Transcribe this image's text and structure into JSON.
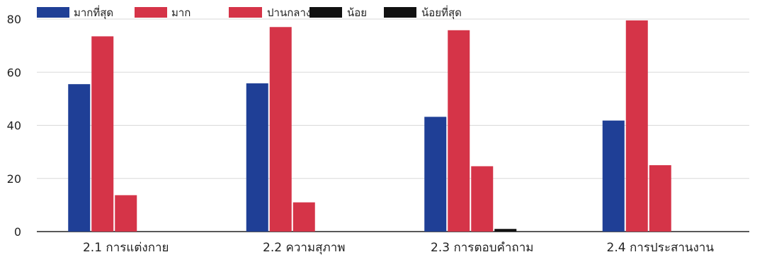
{
  "chart_data": {
    "type": "bar",
    "title": "",
    "xlabel": "",
    "ylabel": "",
    "ylim": [
      0,
      80
    ],
    "yticks": [
      0,
      20,
      40,
      60,
      80
    ],
    "grid": true,
    "legend_position": "top-left",
    "categories": [
      "2.1 การแต่งกาย",
      "2.2 ความสุภาพ",
      "2.3 การตอบคำถาม",
      "2.4 การประสานงาน"
    ],
    "series": [
      {
        "name": "มากที่สุด",
        "color": "#1f3f96",
        "values": [
          55.5,
          55.8,
          43.2,
          41.8
        ]
      },
      {
        "name": "มาก",
        "color": "#d53448",
        "values": [
          73.5,
          77.0,
          75.8,
          79.5
        ]
      },
      {
        "name": "ปานกลาง",
        "color": "#d53448",
        "values": [
          13.7,
          11.0,
          24.6,
          25.0
        ]
      },
      {
        "name": "น้อย",
        "color": "#111111",
        "values": [
          0,
          0,
          1.0,
          0
        ]
      },
      {
        "name": "น้อยที่สุด",
        "color": "#111111",
        "values": [
          0,
          0,
          0,
          0
        ]
      }
    ]
  }
}
